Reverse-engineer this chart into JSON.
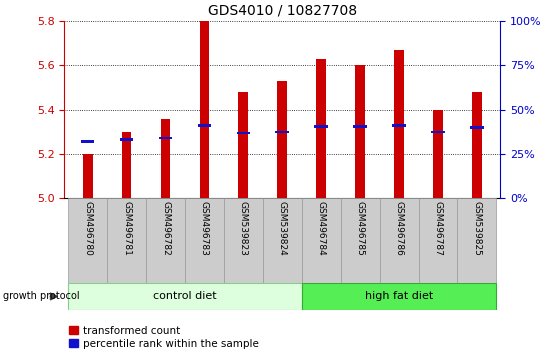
{
  "title": "GDS4010 / 10827708",
  "samples": [
    "GSM496780",
    "GSM496781",
    "GSM496782",
    "GSM496783",
    "GSM539823",
    "GSM539824",
    "GSM496784",
    "GSM496785",
    "GSM496786",
    "GSM496787",
    "GSM539825"
  ],
  "bar_values": [
    5.2,
    5.3,
    5.36,
    5.8,
    5.48,
    5.53,
    5.63,
    5.6,
    5.67,
    5.4,
    5.48
  ],
  "percentile_values": [
    5.255,
    5.265,
    5.272,
    5.33,
    5.295,
    5.3,
    5.325,
    5.325,
    5.33,
    5.3,
    5.32
  ],
  "bar_color": "#CC0000",
  "blue_color": "#1111CC",
  "ymin": 5.0,
  "ymax": 5.8,
  "yticks": [
    5.0,
    5.2,
    5.4,
    5.6,
    5.8
  ],
  "right_yticks": [
    0,
    25,
    50,
    75,
    100
  ],
  "right_ytick_labels": [
    "0%",
    "25%",
    "50%",
    "75%",
    "100%"
  ],
  "control_samples": 6,
  "group_labels": [
    "control diet",
    "high fat diet"
  ],
  "ctrl_facecolor": "#ddffdd",
  "ctrl_edgecolor": "#88cc88",
  "hf_facecolor": "#55ee55",
  "hf_edgecolor": "#33aa33",
  "left_axis_color": "#CC0000",
  "right_axis_color": "#0000CC",
  "bg_xtick": "#cccccc",
  "bar_width": 0.25
}
